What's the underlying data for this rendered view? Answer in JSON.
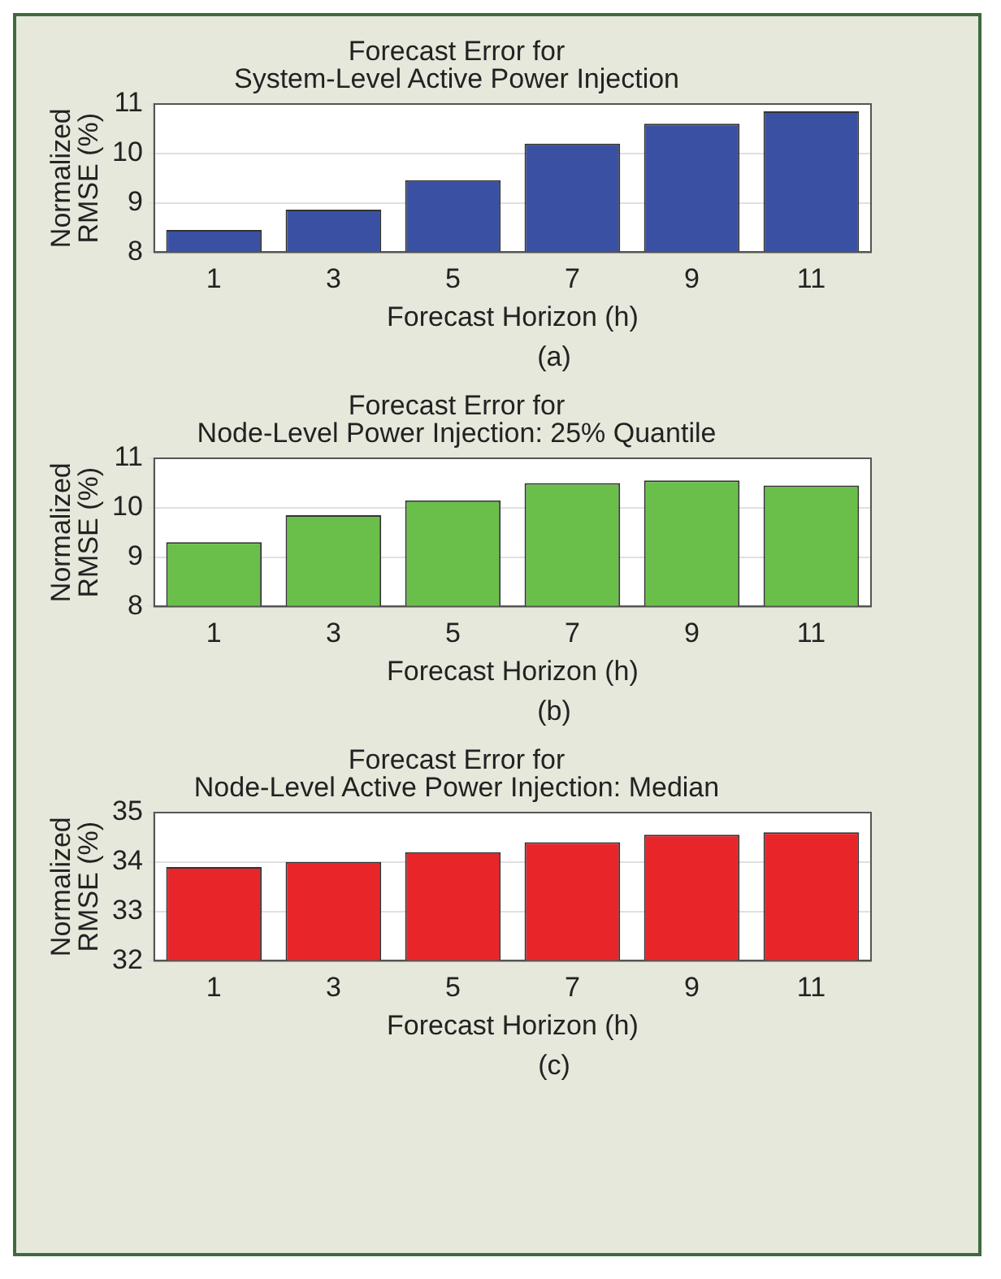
{
  "chart_data": [
    {
      "type": "bar",
      "title": [
        "Forecast Error for",
        "System-Level Active Power Injection"
      ],
      "xlabel": "Forecast Horizon (h)",
      "ylabel": [
        "Normalized",
        "RMSE (%)"
      ],
      "annotations": [
        "(a)"
      ],
      "categories": [
        "1",
        "3",
        "5",
        "7",
        "9",
        "11"
      ],
      "values": [
        8.45,
        8.86,
        9.46,
        10.2,
        10.6,
        10.85
      ],
      "color": "#3a51a3",
      "ylim": [
        8,
        11
      ],
      "yticks": [
        8,
        9,
        10,
        11
      ],
      "grid": "y"
    },
    {
      "type": "bar",
      "title": [
        "Forecast Error for",
        "Node-Level Power Injection: 25% Quantile"
      ],
      "xlabel": "Forecast Horizon (h)",
      "ylabel": [
        "Normalized",
        "RMSE (%)"
      ],
      "annotations": [
        "(b)"
      ],
      "categories": [
        "1",
        "3",
        "5",
        "7",
        "9",
        "11"
      ],
      "values": [
        9.3,
        9.85,
        10.15,
        10.5,
        10.55,
        10.45
      ],
      "color": "#6abf4b",
      "ylim": [
        8,
        11
      ],
      "yticks": [
        8,
        9,
        10,
        11
      ],
      "grid": "y"
    },
    {
      "type": "bar",
      "title": [
        "Forecast Error for",
        "Node-Level Active Power Injection: Median"
      ],
      "xlabel": "Forecast Horizon (h)",
      "ylabel": [
        "Normalized",
        "RMSE (%)"
      ],
      "annotations": [
        "(c)"
      ],
      "categories": [
        "1",
        "3",
        "5",
        "7",
        "9",
        "11"
      ],
      "values": [
        33.9,
        34.0,
        34.2,
        34.4,
        34.55,
        34.6
      ],
      "color": "#e8262a",
      "ylim": [
        32,
        35
      ],
      "yticks": [
        32,
        33,
        34,
        35
      ],
      "grid": "y"
    }
  ]
}
